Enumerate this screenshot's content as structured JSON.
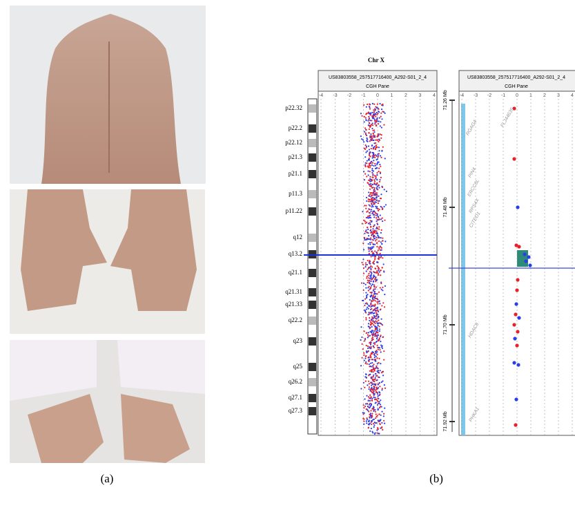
{
  "figure": {
    "panel_a_label": "(a)",
    "panel_b_label": "(b)"
  },
  "cgh": {
    "chromosome": "Chr X",
    "left_pane": {
      "sample": "US83803558_257517716400_A292-S01_2_4",
      "pane": "CGH Pane",
      "scale": [
        -4,
        -3,
        -2,
        -1,
        0,
        1,
        2,
        3,
        4
      ]
    },
    "right_pane": {
      "sample": "US83803558_257517716400_A292-S01_2_4",
      "pane": "CGH Pane",
      "scale": [
        -4,
        -3,
        -2,
        -1,
        0,
        1,
        2,
        3,
        4
      ]
    },
    "bands": [
      "p22.32",
      "p22.2",
      "p22.12",
      "p21.3",
      "p21.1",
      "p11.3",
      "p11.22",
      "q12",
      "q13.2",
      "q21.1",
      "q21.31",
      "q21.33",
      "q22.2",
      "q23",
      "q25",
      "q26.2",
      "q27.1",
      "q27.3"
    ],
    "positions": [
      "71.26 Mb",
      "71.48 Mb",
      "71.70 Mb",
      "71.92 Mb"
    ],
    "genes": [
      "RGAG4",
      "FLJ44635",
      "PIN4",
      "ERCC6L",
      "RPS4X",
      "CITED1",
      "HDAC8",
      "PHKA1"
    ]
  }
}
